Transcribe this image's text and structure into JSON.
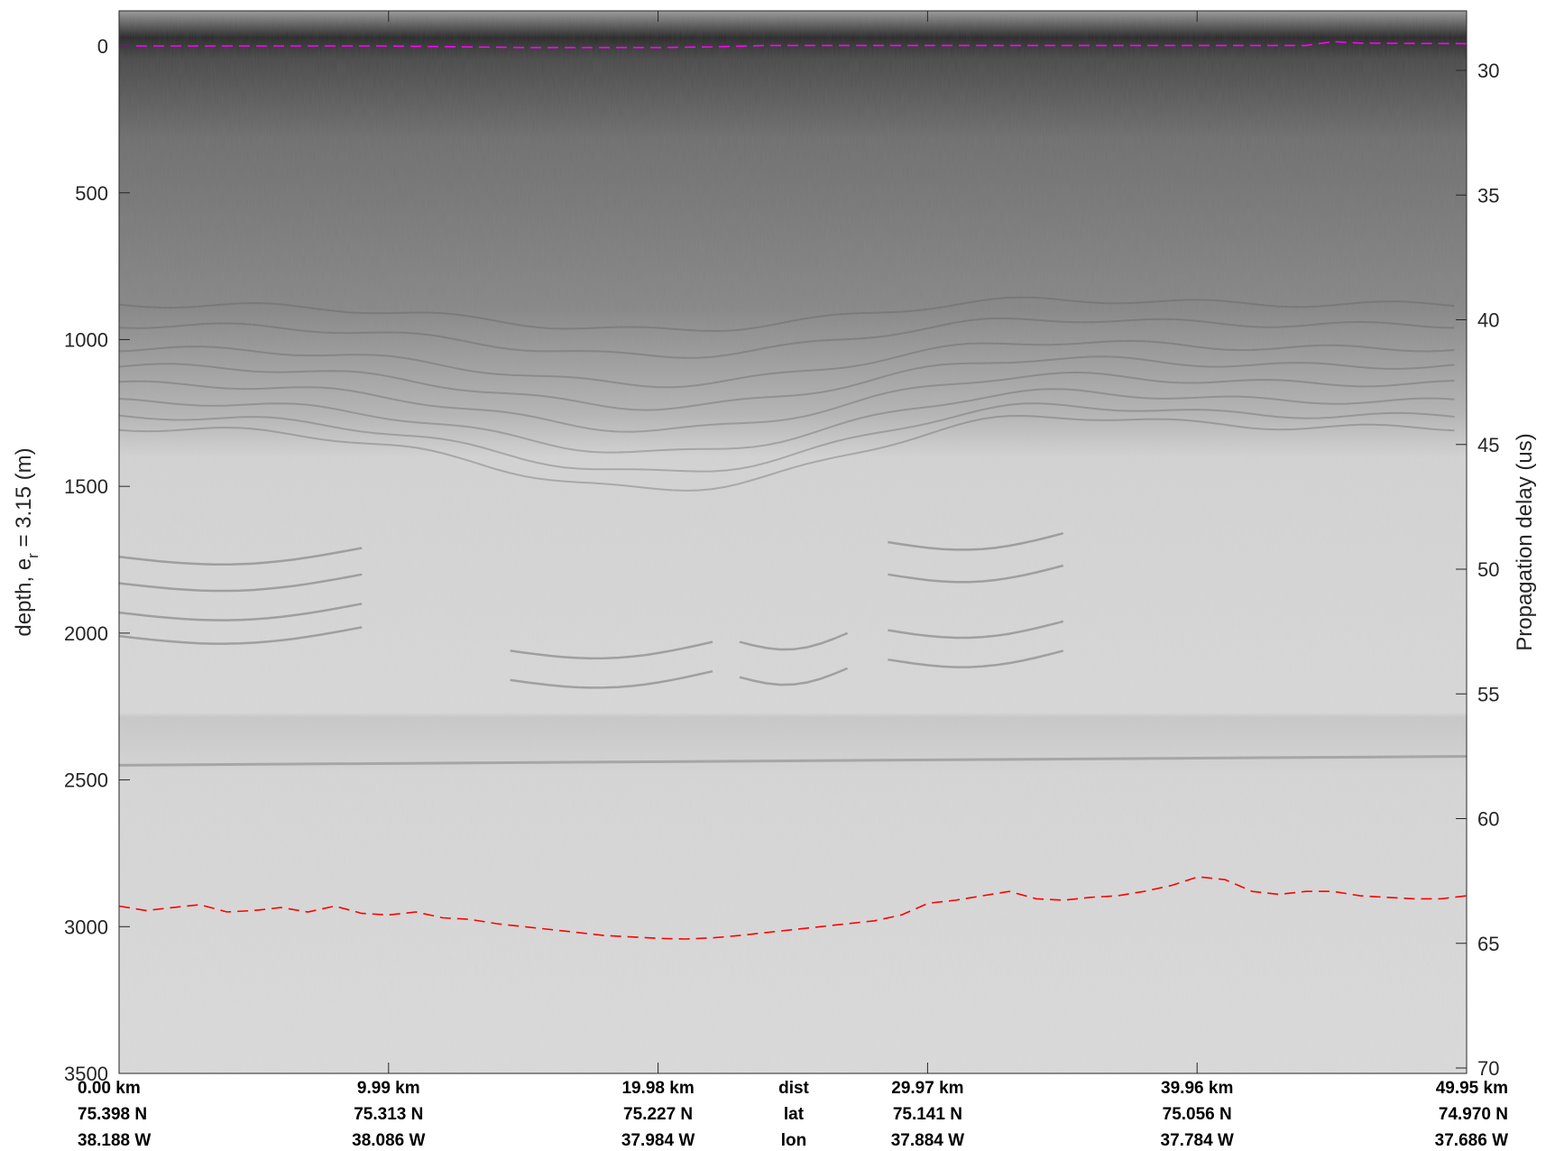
{
  "chart_data": {
    "type": "radar-echogram",
    "left_axis": {
      "label_main": "depth, e",
      "label_sub": "r",
      "label_rest": " = 3.15 (m)",
      "ticks": [
        0,
        500,
        1000,
        1500,
        2000,
        2500,
        3000,
        3500
      ],
      "range": [
        -120,
        3500
      ],
      "reversed": true
    },
    "right_axis": {
      "label": "Propagation delay (us)",
      "ticks": [
        30,
        35,
        40,
        45,
        50,
        55,
        60,
        65,
        70
      ]
    },
    "bottom_rows": {
      "row_names": [
        "dist",
        "lat",
        "lon"
      ],
      "dist": [
        "0.00 km",
        "9.99 km",
        "19.98 km",
        "29.97 km",
        "39.96 km",
        "49.95 km"
      ],
      "lat": [
        "75.398 N",
        "75.313 N",
        "75.227 N",
        "75.141 N",
        "75.056 N",
        "74.970 N"
      ],
      "lon": [
        "38.188 W",
        "38.086 W",
        "37.984 W",
        "37.884 W",
        "37.784 W",
        "37.686 W"
      ]
    },
    "x_range_km": [
      0,
      49.95
    ],
    "surface_pick": {
      "color": "#ff00ff",
      "x_km": [
        0,
        5,
        10,
        15,
        20,
        22,
        24,
        26,
        28,
        30,
        35,
        40,
        44,
        45,
        46,
        49.95
      ],
      "depth_m": [
        0,
        0,
        0,
        5,
        5,
        3,
        -2,
        -2,
        -2,
        -2,
        -2,
        -2,
        -2,
        -15,
        -10,
        -8
      ]
    },
    "bed_pick": {
      "color": "#ff0000",
      "x_km": [
        0,
        1,
        2,
        3,
        4,
        5,
        6,
        7,
        8,
        9,
        10,
        11,
        12,
        13,
        14,
        15,
        16,
        17,
        18,
        19,
        20,
        21,
        22,
        23,
        24,
        25,
        26,
        27,
        28,
        29,
        30,
        31,
        32,
        33,
        34,
        35,
        36,
        37,
        38,
        39,
        40,
        41,
        42,
        43,
        44,
        45,
        46,
        47,
        48,
        49,
        49.95
      ],
      "depth_m": [
        2930,
        2945,
        2935,
        2925,
        2950,
        2945,
        2935,
        2950,
        2930,
        2955,
        2960,
        2950,
        2970,
        2975,
        2990,
        3000,
        3010,
        3020,
        3030,
        3035,
        3040,
        3042,
        3038,
        3030,
        3020,
        3010,
        3000,
        2990,
        2980,
        2960,
        2920,
        2910,
        2895,
        2880,
        2905,
        2910,
        2900,
        2895,
        2880,
        2860,
        2830,
        2840,
        2880,
        2890,
        2880,
        2880,
        2895,
        2900,
        2905,
        2905,
        2895
      ]
    },
    "colormap": "grayscale"
  }
}
